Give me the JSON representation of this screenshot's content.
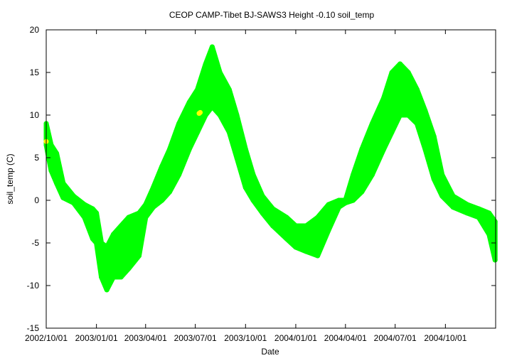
{
  "chart_data": {
    "type": "scatter",
    "title": "CEOP CAMP-Tibet BJ-SAWS3 Height -0.10 soil_temp",
    "xlabel": "Date",
    "ylabel": "soil_temp (C)",
    "xlim": [
      "2002-10-01",
      "2005-01-01"
    ],
    "ylim": [
      -15,
      20
    ],
    "x_ticks": [
      "2002/10/01",
      "2003/01/01",
      "2003/04/01",
      "2003/07/01",
      "2003/10/01",
      "2004/01/01",
      "2004/04/01",
      "2004/07/01",
      "2004/10/01"
    ],
    "y_ticks": [
      -15,
      -10,
      -5,
      0,
      5,
      10,
      15,
      20
    ],
    "grid": false,
    "series": [
      {
        "color": "#00ff00",
        "points": [
          {
            "x": "2002-10-01",
            "low": 6.5,
            "high": 9.0
          },
          {
            "x": "2002-10-10",
            "low": 3.5,
            "high": 6.5
          },
          {
            "x": "2002-10-20",
            "low": 2.0,
            "high": 5.5
          },
          {
            "x": "2002-11-01",
            "low": 0.3,
            "high": 2.0
          },
          {
            "x": "2002-11-20",
            "low": -0.3,
            "high": 0.5
          },
          {
            "x": "2002-12-10",
            "low": -2.0,
            "high": -0.5
          },
          {
            "x": "2002-12-25",
            "low": -4.5,
            "high": -1.0
          },
          {
            "x": "2003-01-01",
            "low": -5.0,
            "high": -1.5
          },
          {
            "x": "2003-01-10",
            "low": -9.0,
            "high": -5.0
          },
          {
            "x": "2003-01-20",
            "low": -10.5,
            "high": -5.5
          },
          {
            "x": "2003-02-01",
            "low": -9.0,
            "high": -4.0
          },
          {
            "x": "2003-02-15",
            "low": -9.0,
            "high": -3.0
          },
          {
            "x": "2003-03-01",
            "low": -8.0,
            "high": -2.0
          },
          {
            "x": "2003-03-20",
            "low": -6.5,
            "high": -1.5
          },
          {
            "x": "2003-04-01",
            "low": -2.0,
            "high": -0.5
          },
          {
            "x": "2003-04-15",
            "low": -0.8,
            "high": 1.5
          },
          {
            "x": "2003-05-01",
            "low": 0.0,
            "high": 4.0
          },
          {
            "x": "2003-05-15",
            "low": 1.0,
            "high": 6.0
          },
          {
            "x": "2003-06-01",
            "low": 3.0,
            "high": 9.0
          },
          {
            "x": "2003-06-20",
            "low": 6.0,
            "high": 11.5
          },
          {
            "x": "2003-07-05",
            "low": 8.0,
            "high": 13.0
          },
          {
            "x": "2003-07-20",
            "low": 10.0,
            "high": 16.0
          },
          {
            "x": "2003-08-01",
            "low": 11.0,
            "high": 18.0
          },
          {
            "x": "2003-08-15",
            "low": 10.0,
            "high": 15.0
          },
          {
            "x": "2003-09-01",
            "low": 8.0,
            "high": 13.0
          },
          {
            "x": "2003-09-15",
            "low": 5.0,
            "high": 10.0
          },
          {
            "x": "2003-10-01",
            "low": 1.5,
            "high": 6.0
          },
          {
            "x": "2003-10-15",
            "low": 0.0,
            "high": 3.0
          },
          {
            "x": "2003-11-01",
            "low": -1.5,
            "high": 0.5
          },
          {
            "x": "2003-11-20",
            "low": -3.0,
            "high": -1.0
          },
          {
            "x": "2003-12-15",
            "low": -4.5,
            "high": -2.0
          },
          {
            "x": "2004-01-01",
            "low": -5.5,
            "high": -3.0
          },
          {
            "x": "2004-01-20",
            "low": -6.0,
            "high": -3.0
          },
          {
            "x": "2004-02-10",
            "low": -6.5,
            "high": -2.0
          },
          {
            "x": "2004-03-01",
            "low": -3.5,
            "high": -0.5
          },
          {
            "x": "2004-03-20",
            "low": -0.8,
            "high": 0.0
          },
          {
            "x": "2004-04-01",
            "low": -0.3,
            "high": 0.0
          },
          {
            "x": "2004-04-15",
            "low": 0.0,
            "high": 3.0
          },
          {
            "x": "2004-05-01",
            "low": 1.0,
            "high": 6.0
          },
          {
            "x": "2004-05-20",
            "low": 3.0,
            "high": 9.0
          },
          {
            "x": "2004-06-10",
            "low": 6.0,
            "high": 12.0
          },
          {
            "x": "2004-06-25",
            "low": 8.0,
            "high": 15.0
          },
          {
            "x": "2004-07-10",
            "low": 10.0,
            "high": 16.0
          },
          {
            "x": "2004-07-25",
            "low": 10.0,
            "high": 15.0
          },
          {
            "x": "2004-08-10",
            "low": 9.0,
            "high": 13.0
          },
          {
            "x": "2004-08-25",
            "low": 6.0,
            "high": 10.5
          },
          {
            "x": "2004-09-10",
            "low": 2.5,
            "high": 7.5
          },
          {
            "x": "2004-09-25",
            "low": 0.5,
            "high": 3.0
          },
          {
            "x": "2004-10-15",
            "low": -0.8,
            "high": 0.5
          },
          {
            "x": "2004-11-10",
            "low": -1.5,
            "high": -0.5
          },
          {
            "x": "2004-12-01",
            "low": -2.0,
            "high": -1.0
          },
          {
            "x": "2004-12-20",
            "low": -4.0,
            "high": -1.5
          },
          {
            "x": "2004-12-31",
            "low": -7.0,
            "high": -2.5
          }
        ]
      },
      {
        "color": "#ffff00",
        "points": [
          {
            "x": "2002-10-01",
            "y": 6.9
          },
          {
            "x": "2003-07-08",
            "y": 10.2
          },
          {
            "x": "2003-07-10",
            "y": 10.3
          }
        ]
      }
    ]
  }
}
